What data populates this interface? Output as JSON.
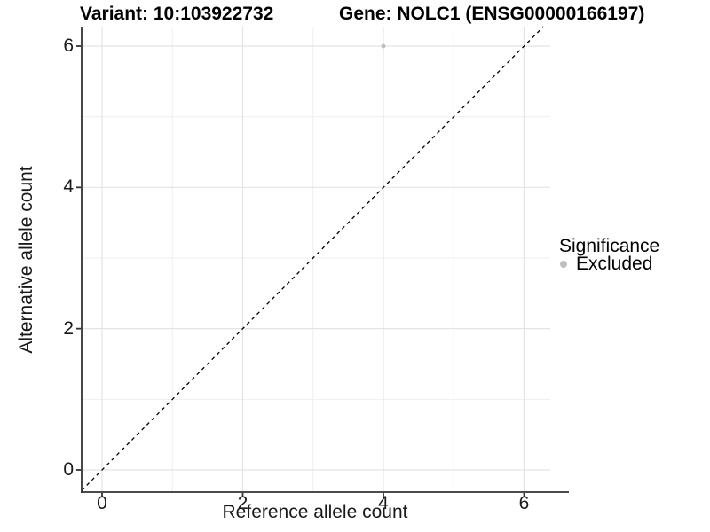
{
  "chart_data": {
    "type": "scatter",
    "title": "Variant: 10:103922732",
    "subtitle": "Gene: NOLC1 (ENSG00000166197)",
    "xlabel": "Reference allele count",
    "ylabel": "Alternative allele count",
    "xlim": [
      -0.29,
      6.35
    ],
    "ylim": [
      -0.31,
      6.28
    ],
    "x_ticks": [
      0,
      2,
      4,
      6
    ],
    "y_ticks": [
      0,
      2,
      4,
      6
    ],
    "x_minor": [
      1,
      3,
      5
    ],
    "y_minor": [
      1,
      3,
      5
    ],
    "grid": "major+minor",
    "legend_position": "right",
    "legend": {
      "title": "Significance",
      "entries": [
        {
          "label": "Excluded",
          "color": "#bebebe"
        }
      ]
    },
    "series": [
      {
        "name": "Excluded",
        "color": "#bebebe",
        "point_radius": 2.5,
        "points": [
          {
            "x": 4,
            "y": 6
          }
        ]
      }
    ],
    "reference_line": {
      "slope": 1,
      "intercept": 0,
      "style": "dashed",
      "color": "#000000"
    }
  },
  "colors": {
    "background": "#ffffff",
    "grid_major": "#e4e4e4",
    "grid_minor": "#efefef",
    "axis": "#333333",
    "point": "#bebebe",
    "text": "#000000"
  }
}
